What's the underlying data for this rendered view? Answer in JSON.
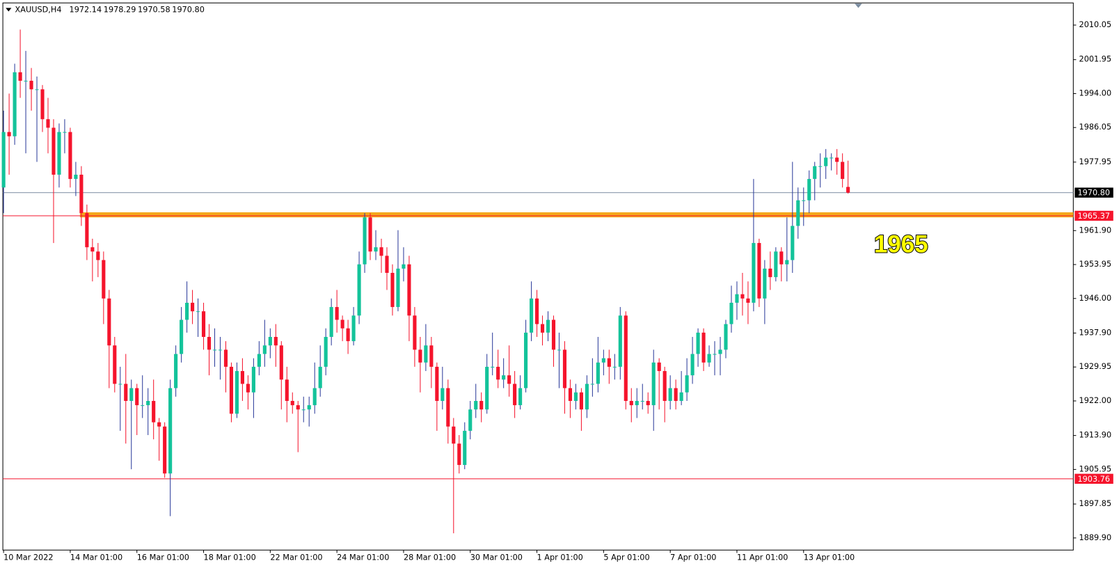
{
  "chart_data": {
    "type": "candlestick",
    "header": {
      "symbol": "XAUUSD,H4",
      "values": [
        "1972.14",
        "1978.29",
        "1970.58",
        "1970.80"
      ]
    },
    "up_color": "#13c39a",
    "down_color": "#f5142c",
    "up_wick_color": "#2a3a9a",
    "down_wick_color": "#f5142c",
    "ylim": [
      1887.06,
      2015.07
    ],
    "yticks": [
      2010.05,
      2001.95,
      {
        "value": 1994,
        "label": "1994.00"
      },
      1986.05,
      1977.95,
      {
        "value": 1961.9,
        "label": "1961.90"
      },
      1953.95,
      {
        "value": 1946,
        "label": "1946.00"
      },
      {
        "value": 1937.9,
        "label": "1937.90"
      },
      1929.95,
      {
        "value": 1922,
        "label": "1922.00"
      },
      {
        "value": 1913.9,
        "label": "1913.90"
      },
      1905.95,
      1897.85,
      {
        "value": 1889.9,
        "label": "1889.90"
      }
    ],
    "categories": [
      "10 Mar 2022",
      null,
      null,
      null,
      null,
      null,
      null,
      null,
      null,
      null,
      null,
      null,
      "14 Mar 01:00",
      null,
      null,
      null,
      null,
      null,
      null,
      null,
      null,
      null,
      null,
      null,
      "16 Mar 01:00",
      null,
      null,
      null,
      null,
      null,
      null,
      null,
      null,
      null,
      null,
      null,
      "18 Mar 01:00",
      null,
      null,
      null,
      null,
      null,
      null,
      null,
      null,
      null,
      null,
      null,
      "22 Mar 01:00",
      null,
      null,
      null,
      null,
      null,
      null,
      null,
      null,
      null,
      null,
      null,
      "24 Mar 01:00",
      null,
      null,
      null,
      null,
      null,
      null,
      null,
      null,
      null,
      null,
      null,
      "28 Mar 01:00",
      null,
      null,
      null,
      null,
      null,
      null,
      null,
      null,
      null,
      null,
      null,
      "30 Mar 01:00",
      null,
      null,
      null,
      null,
      null,
      null,
      null,
      null,
      null,
      null,
      null,
      "1 Apr 01:00",
      null,
      null,
      null,
      null,
      null,
      null,
      null,
      null,
      null,
      null,
      null,
      "5 Apr 01:00",
      null,
      null,
      null,
      null,
      null,
      null,
      null,
      null,
      null,
      null,
      null,
      "7 Apr 01:00",
      null,
      null,
      null,
      null,
      null,
      null,
      null,
      null,
      null,
      null,
      null,
      "11 Apr 01:00",
      null,
      null,
      null,
      null,
      null,
      null,
      null,
      null,
      null,
      null,
      null,
      "13 Apr 01:00",
      null,
      null,
      null,
      null,
      null,
      null,
      null,
      null
    ],
    "ohlc": [
      [
        1972,
        1990,
        1966,
        1985
      ],
      [
        1985,
        1994,
        1975,
        1984
      ],
      [
        1984,
        2001,
        1982,
        1999
      ],
      [
        1999,
        2009,
        1993,
        1997
      ],
      [
        1997,
        2004,
        1980,
        1997
      ],
      [
        1997,
        2000,
        1990,
        1995
      ],
      [
        1995,
        1998,
        1978,
        1995
      ],
      [
        1995,
        1996,
        1985,
        1988
      ],
      [
        1988,
        1993,
        1980,
        1986
      ],
      [
        1986,
        1988,
        1959,
        1975
      ],
      [
        1975,
        1987,
        1972,
        1985
      ],
      [
        1985,
        1988,
        1980,
        1985
      ],
      [
        1985,
        1986,
        1972,
        1974
      ],
      [
        1974,
        1978,
        1970,
        1975
      ],
      [
        1975,
        1977,
        1963,
        1966
      ],
      [
        1966,
        1968,
        1955,
        1958
      ],
      [
        1958,
        1960,
        1950,
        1957
      ],
      [
        1957,
        1959,
        1951,
        1955
      ],
      [
        1955,
        1957,
        1940,
        1946
      ],
      [
        1946,
        1948,
        1925,
        1935
      ],
      [
        1935,
        1937,
        1924,
        1926
      ],
      [
        1926,
        1930,
        1915,
        1926
      ],
      [
        1926,
        1933,
        1912,
        1922
      ],
      [
        1922,
        1927,
        1906,
        1925
      ],
      [
        1925,
        1926,
        1914,
        1921
      ],
      [
        1921,
        1928,
        1918,
        1921
      ],
      [
        1921,
        1925,
        1914,
        1922
      ],
      [
        1922,
        1927,
        1913,
        1917
      ],
      [
        1917,
        1918,
        1908,
        1916
      ],
      [
        1916,
        1917,
        1904,
        1905
      ],
      [
        1905,
        1927,
        1895,
        1925
      ],
      [
        1925,
        1935,
        1923,
        1933
      ],
      [
        1933,
        1944,
        1931,
        1941
      ],
      [
        1941,
        1950,
        1938,
        1945
      ],
      [
        1945,
        1948,
        1940,
        1943
      ],
      [
        1943,
        1946,
        1937,
        1943
      ],
      [
        1943,
        1945,
        1934,
        1937
      ],
      [
        1937,
        1940,
        1928,
        1934
      ],
      [
        1934,
        1939,
        1930,
        1934
      ],
      [
        1934,
        1937,
        1927,
        1934
      ],
      [
        1934,
        1936,
        1924,
        1930
      ],
      [
        1930,
        1931,
        1917,
        1919
      ],
      [
        1919,
        1931,
        1918,
        1929
      ],
      [
        1929,
        1932,
        1922,
        1926
      ],
      [
        1926,
        1928,
        1920,
        1924
      ],
      [
        1924,
        1932,
        1918,
        1930
      ],
      [
        1930,
        1936,
        1928,
        1933
      ],
      [
        1933,
        1941,
        1930,
        1935
      ],
      [
        1935,
        1939,
        1932,
        1937
      ],
      [
        1937,
        1940,
        1930,
        1935
      ],
      [
        1935,
        1936,
        1920,
        1927
      ],
      [
        1927,
        1930,
        1917,
        1922
      ],
      [
        1922,
        1924,
        1919,
        1921
      ],
      [
        1921,
        1922,
        1910,
        1920
      ],
      [
        1920,
        1923,
        1917,
        1920
      ],
      [
        1920,
        1923,
        1916,
        1921
      ],
      [
        1921,
        1931,
        1919,
        1925
      ],
      [
        1925,
        1935,
        1923,
        1930
      ],
      [
        1930,
        1939,
        1928,
        1937
      ],
      [
        1937,
        1946,
        1935,
        1944
      ],
      [
        1944,
        1948,
        1938,
        1941
      ],
      [
        1941,
        1942,
        1936,
        1939
      ],
      [
        1939,
        1941,
        1933,
        1936
      ],
      [
        1936,
        1944,
        1935,
        1942
      ],
      [
        1942,
        1957,
        1940,
        1954
      ],
      [
        1954,
        1966,
        1952,
        1965
      ],
      [
        1965,
        1966,
        1955,
        1957
      ],
      [
        1957,
        1962,
        1955,
        1958
      ],
      [
        1958,
        1960,
        1952,
        1956
      ],
      [
        1956,
        1958,
        1948,
        1952
      ],
      [
        1952,
        1954,
        1942,
        1944
      ],
      [
        1944,
        1962,
        1943,
        1953
      ],
      [
        1953,
        1958,
        1950,
        1954
      ],
      [
        1954,
        1956,
        1936,
        1942
      ],
      [
        1942,
        1944,
        1930,
        1934
      ],
      [
        1934,
        1937,
        1924,
        1931
      ],
      [
        1931,
        1940,
        1929,
        1935
      ],
      [
        1935,
        1937,
        1925,
        1930
      ],
      [
        1930,
        1931,
        1915,
        1922
      ],
      [
        1922,
        1930,
        1920,
        1925
      ],
      [
        1925,
        1927,
        1912,
        1916
      ],
      [
        1916,
        1918,
        1891,
        1912
      ],
      [
        1912,
        1914,
        1905,
        1907
      ],
      [
        1907,
        1917,
        1906,
        1915
      ],
      [
        1915,
        1922,
        1913,
        1920
      ],
      [
        1920,
        1926,
        1918,
        1922
      ],
      [
        1922,
        1924,
        1917,
        1920
      ],
      [
        1920,
        1933,
        1919,
        1930
      ],
      [
        1930,
        1938,
        1928,
        1930
      ],
      [
        1930,
        1934,
        1925,
        1927
      ],
      [
        1927,
        1932,
        1925,
        1928
      ],
      [
        1928,
        1935,
        1923,
        1926
      ],
      [
        1926,
        1929,
        1918,
        1921
      ],
      [
        1921,
        1928,
        1920,
        1925
      ],
      [
        1925,
        1941,
        1924,
        1938
      ],
      [
        1938,
        1950,
        1936,
        1946
      ],
      [
        1946,
        1948,
        1937,
        1940
      ],
      [
        1940,
        1942,
        1935,
        1938
      ],
      [
        1938,
        1943,
        1936,
        1941
      ],
      [
        1941,
        1942,
        1930,
        1934
      ],
      [
        1934,
        1938,
        1925,
        1934
      ],
      [
        1934,
        1936,
        1919,
        1925
      ],
      [
        1925,
        1927,
        1918,
        1922
      ],
      [
        1922,
        1926,
        1920,
        1924
      ],
      [
        1924,
        1925,
        1915,
        1920
      ],
      [
        1920,
        1928,
        1918,
        1926
      ],
      [
        1926,
        1932,
        1923,
        1926
      ],
      [
        1926,
        1937,
        1924,
        1931
      ],
      [
        1931,
        1934,
        1928,
        1932
      ],
      [
        1932,
        1934,
        1926,
        1930
      ],
      [
        1930,
        1933,
        1927,
        1930
      ],
      [
        1930,
        1944,
        1927,
        1942
      ],
      [
        1942,
        1943,
        1920,
        1922
      ],
      [
        1922,
        1925,
        1917,
        1921
      ],
      [
        1921,
        1925,
        1918,
        1922
      ],
      [
        1922,
        1926,
        1920,
        1922
      ],
      [
        1922,
        1924,
        1919,
        1921
      ],
      [
        1921,
        1934,
        1915,
        1931
      ],
      [
        1931,
        1932,
        1920,
        1929
      ],
      [
        1929,
        1930,
        1917,
        1922
      ],
      [
        1922,
        1928,
        1920,
        1925
      ],
      [
        1925,
        1927,
        1920,
        1922
      ],
      [
        1922,
        1929,
        1921,
        1924
      ],
      [
        1924,
        1932,
        1922,
        1928
      ],
      [
        1928,
        1937,
        1926,
        1933
      ],
      [
        1933,
        1939,
        1930,
        1938
      ],
      [
        1938,
        1939,
        1929,
        1931
      ],
      [
        1931,
        1935,
        1930,
        1933
      ],
      [
        1933,
        1936,
        1928,
        1933
      ],
      [
        1933,
        1937,
        1928,
        1934
      ],
      [
        1934,
        1941,
        1932,
        1940
      ],
      [
        1940,
        1949,
        1938,
        1945
      ],
      [
        1945,
        1950,
        1941,
        1947
      ],
      [
        1947,
        1952,
        1942,
        1946
      ],
      [
        1946,
        1950,
        1940,
        1945
      ],
      [
        1945,
        1974,
        1943,
        1959
      ],
      [
        1959,
        1960,
        1944,
        1946
      ],
      [
        1946,
        1955,
        1940,
        1953
      ],
      [
        1953,
        1957,
        1948,
        1951
      ],
      [
        1951,
        1958,
        1950,
        1957
      ],
      [
        1957,
        1958,
        1950,
        1954
      ],
      [
        1954,
        1965,
        1950,
        1955
      ],
      [
        1955,
        1978,
        1952,
        1963
      ],
      [
        1963,
        1972,
        1960,
        1969
      ],
      [
        1969,
        1972,
        1963,
        1969
      ],
      [
        1969,
        1976,
        1966,
        1974
      ],
      [
        1974,
        1978,
        1969,
        1977
      ],
      [
        1977,
        1980,
        1972,
        1977
      ],
      [
        1977,
        1981,
        1974,
        1979
      ],
      [
        1979,
        1980,
        1976,
        1979
      ],
      [
        1979,
        1981,
        1975,
        1978
      ],
      [
        1978,
        1980,
        1972,
        1974
      ],
      [
        1972.14,
        1978.29,
        1970.58,
        1970.8
      ]
    ],
    "levels": [
      {
        "value": 1970.8,
        "label": "1970.80",
        "color": "#7a8ca0",
        "label_bg": "#000000"
      },
      {
        "value": 1965.37,
        "label": "1965.37",
        "color": "#f5142c",
        "label_bg": "#f5142c"
      },
      {
        "value": 1903.76,
        "label": "1903.76",
        "color": "#f5142c",
        "label_bg": "#f5142c"
      }
    ],
    "zone": {
      "value": 1965.6,
      "color": "#f5a81c"
    },
    "annotation": {
      "text": "1965"
    }
  }
}
